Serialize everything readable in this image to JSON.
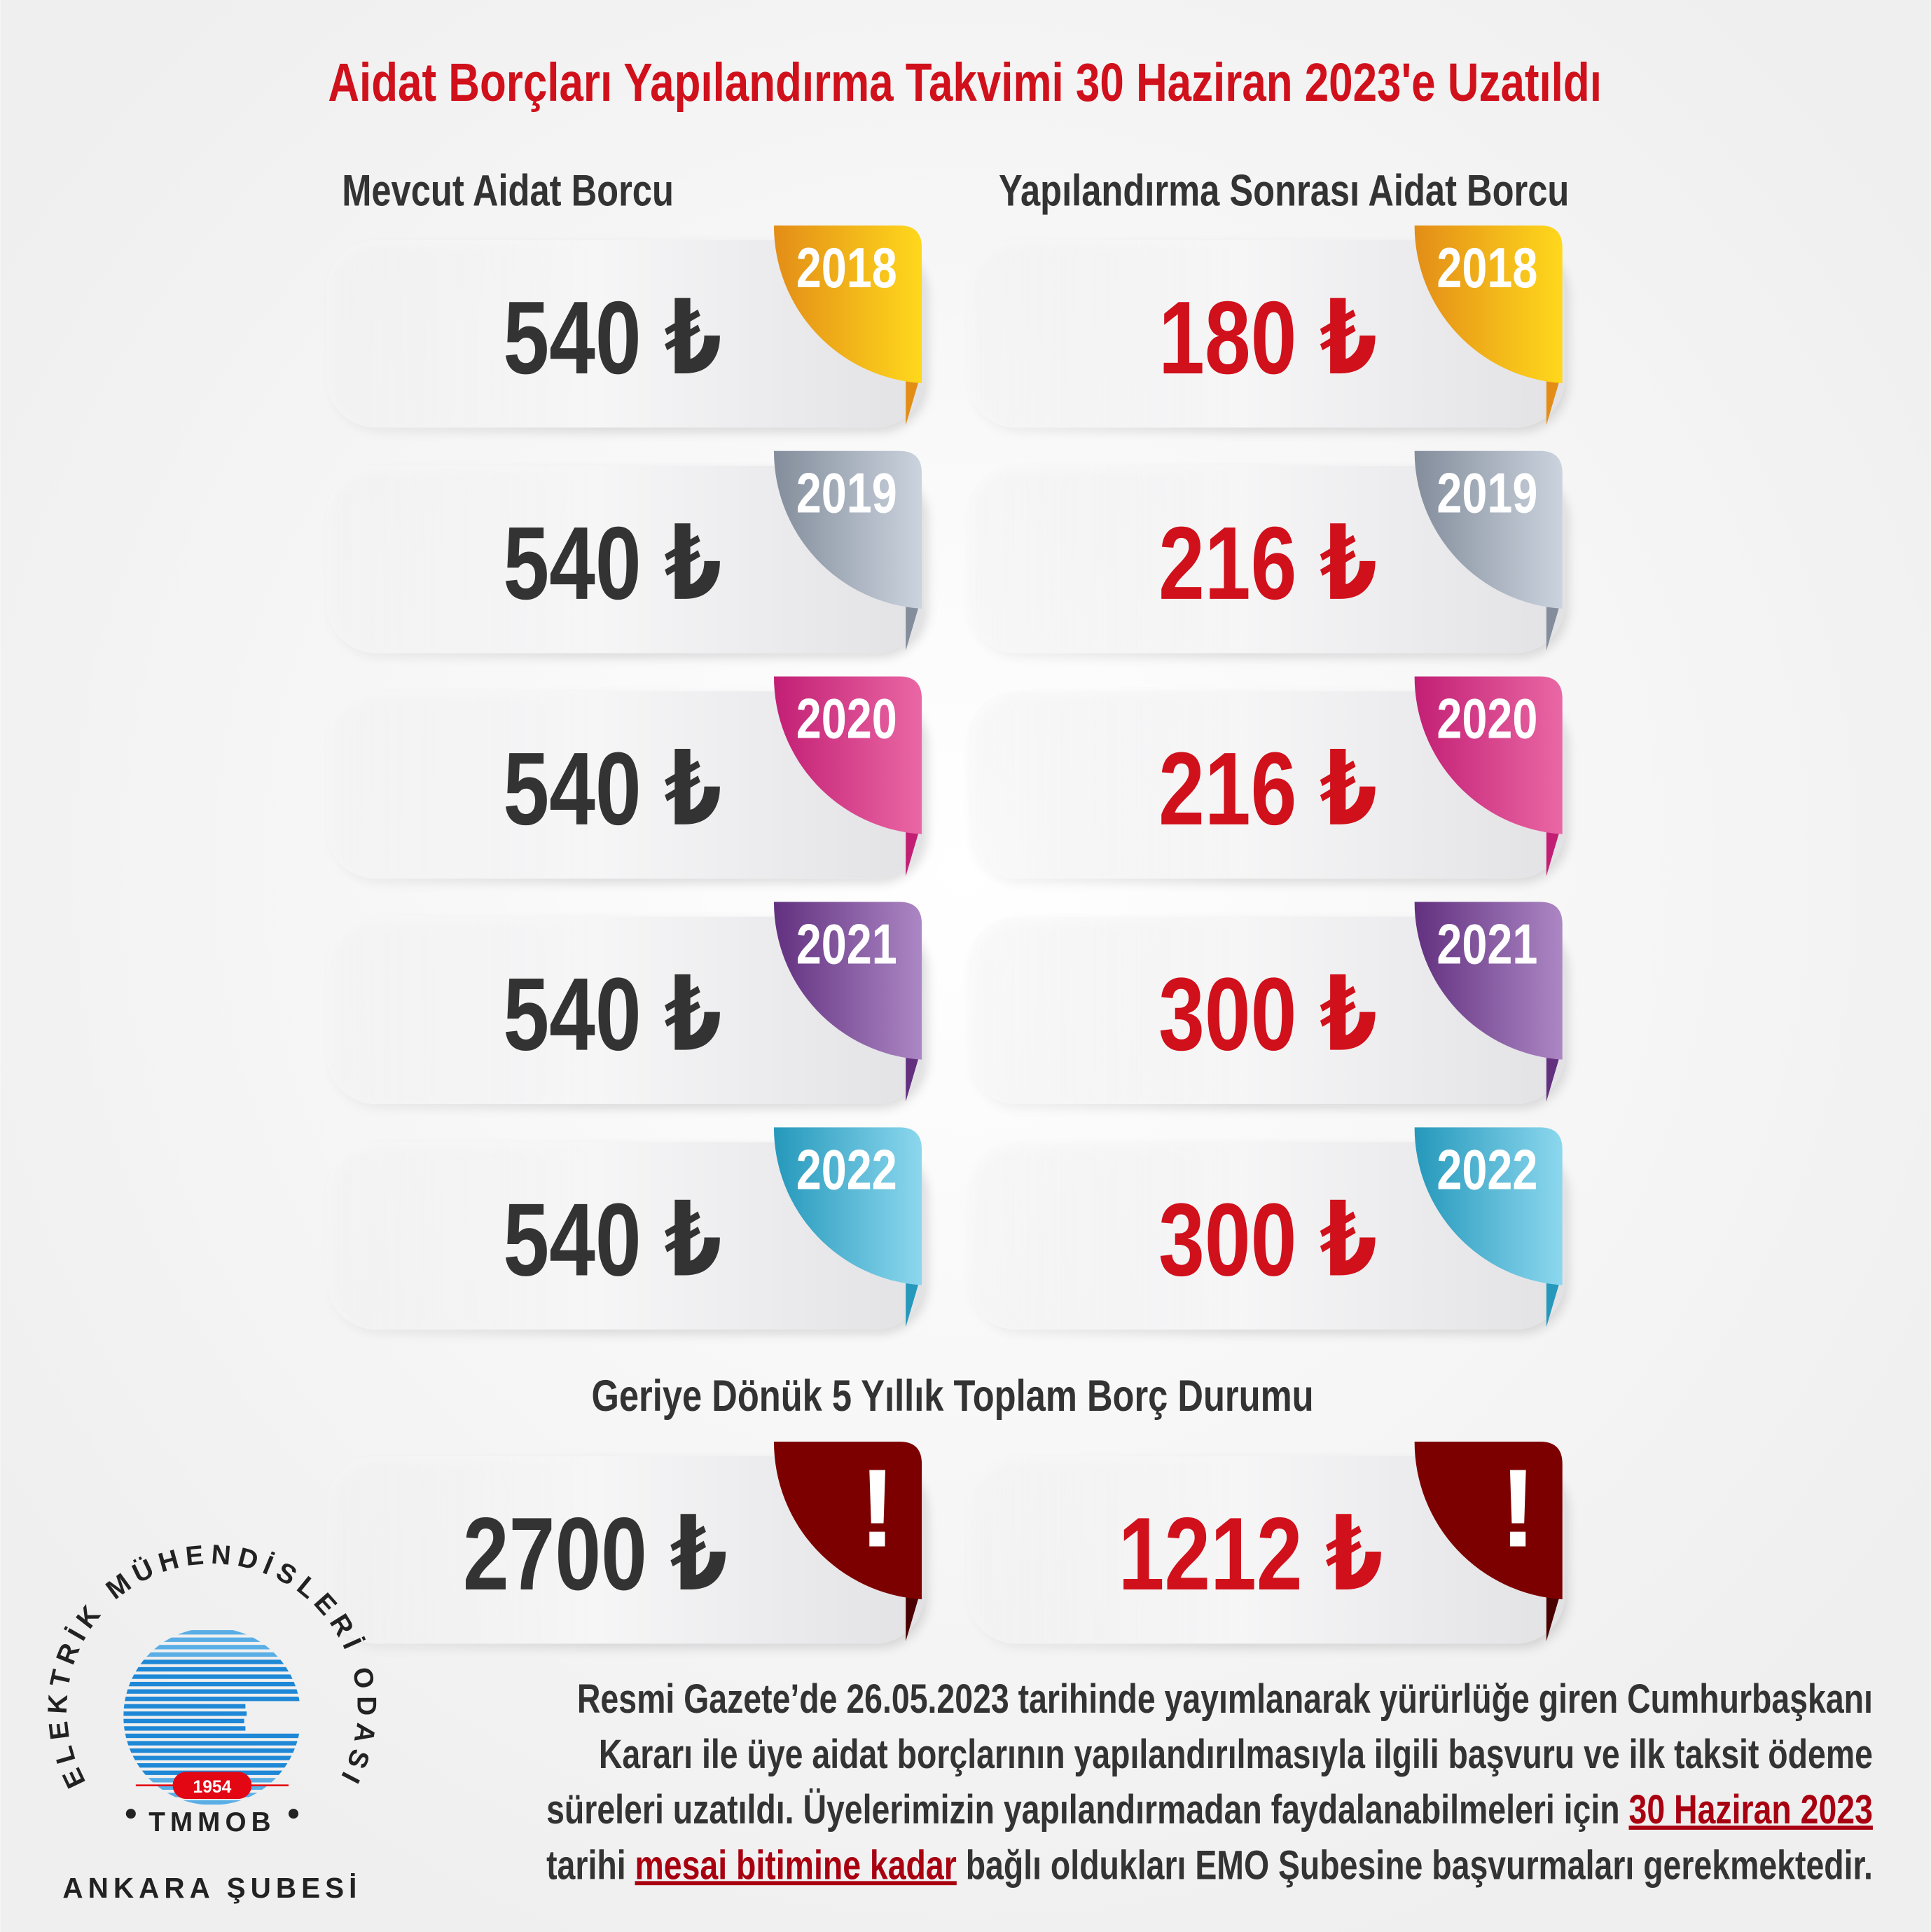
{
  "title": "Aidat Borçları Yapılandırma Takvimi 30 Haziran 2023'e Uzatıldı",
  "columns": [
    {
      "heading": "Mevcut Aidat Borcu",
      "rows": [
        {
          "year": "2018",
          "amount": "540 ₺"
        },
        {
          "year": "2019",
          "amount": "540 ₺"
        },
        {
          "year": "2020",
          "amount": "540 ₺"
        },
        {
          "year": "2021",
          "amount": "540 ₺"
        },
        {
          "year": "2022",
          "amount": "540 ₺"
        }
      ]
    },
    {
      "heading": "Yapılandırma Sonrası Aidat Borcu",
      "rows": [
        {
          "year": "2018",
          "amount": "180 ₺"
        },
        {
          "year": "2019",
          "amount": "216 ₺"
        },
        {
          "year": "2020",
          "amount": "216 ₺"
        },
        {
          "year": "2021",
          "amount": "300 ₺"
        },
        {
          "year": "2022",
          "amount": "300 ₺"
        }
      ]
    }
  ],
  "total": {
    "heading": "Geriye Dönük 5 Yıllık Toplam Borç Durumu",
    "values": [
      "2700 ₺",
      "1212 ₺"
    ],
    "mark": "!"
  },
  "note": {
    "lines": [
      [
        {
          "text": "Resmi Gazete’de 26.05.2023 tarihinde yayımlanarak yürürlüğe giren Cumhurbaşkanı"
        }
      ],
      [
        {
          "text": "Kararı ile üye aidat borçlarının yapılandırılmasıyla ilgili başvuru ve ilk taksit ödeme"
        }
      ],
      [
        {
          "text": "süreleri uzatıldı. Üyelerimizin yapılandırmadan faydalanabilmeleri için "
        },
        {
          "text": "30 Haziran 2023",
          "underline": true
        }
      ],
      [
        {
          "text": "tarihi "
        },
        {
          "text": "mesai bitimine kadar",
          "underline": true
        },
        {
          "text": " bağlı oldukları EMO Şubesine başvurmaları gerekmektedir."
        }
      ]
    ]
  },
  "logo": {
    "arc_text": "ELEKTRİK MÜHENDİSLERİ ODASI",
    "year": "1954",
    "bottom": "TMMOB",
    "branch": "ANKARA ŞUBESİ"
  }
}
